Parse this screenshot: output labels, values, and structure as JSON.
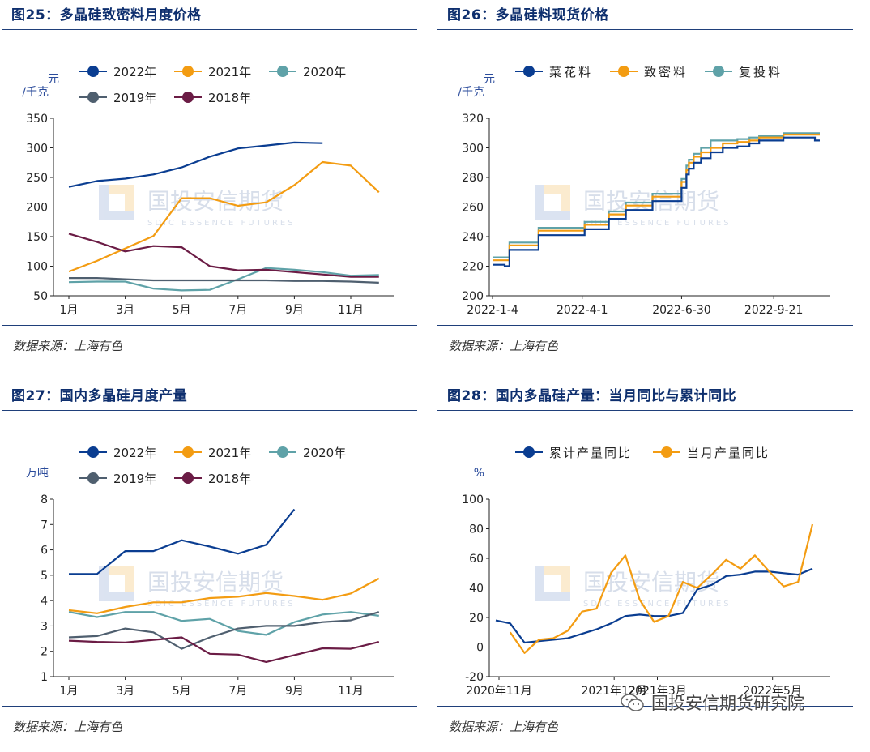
{
  "watermark": {
    "cn": "国投安信期货",
    "en": "SDIC ESSENCE FUTURES"
  },
  "footer_watermark": "国投安信期货研究院",
  "source": "数据来源：上海有色",
  "charts": [
    {
      "title": "图25：多晶硅致密料月度价格",
      "chart_data": {
        "type": "line",
        "unit": "元\n/千克",
        "unit_lines": [
          "元",
          "/千克"
        ],
        "x": [
          1,
          2,
          3,
          4,
          5,
          6,
          7,
          8,
          9,
          10,
          11,
          12
        ],
        "xticks": [
          "1月",
          "3月",
          "5月",
          "7月",
          "9月",
          "11月"
        ],
        "ylim": [
          50,
          350
        ],
        "yticks": [
          "50",
          "100",
          "150",
          "200",
          "250",
          "300",
          "350"
        ],
        "series": [
          {
            "name": "2022年",
            "color": "#0a3d91",
            "values": [
              234,
              244,
              248,
              255,
              267,
              285,
              299,
              304,
              309,
              308,
              null,
              null
            ]
          },
          {
            "name": "2021年",
            "color": "#f39c12",
            "values": [
              91,
              109,
              130,
              151,
              215,
              215,
              202,
              208,
              237,
              276,
              270,
              225
            ]
          },
          {
            "name": "2020年",
            "color": "#5fa2a8",
            "values": [
              73,
              74,
              74,
              62,
              59,
              60,
              78,
              97,
              94,
              90,
              84,
              85
            ]
          },
          {
            "name": "2019年",
            "color": "#4f5f6f",
            "values": [
              80,
              80,
              78,
              76,
              76,
              76,
              76,
              76,
              75,
              75,
              74,
              72
            ]
          },
          {
            "name": "2018年",
            "color": "#6b1c45",
            "values": [
              155,
              141,
              125,
              134,
              132,
              100,
              93,
              94,
              90,
              86,
              82,
              82
            ]
          }
        ]
      }
    },
    {
      "title": "图26：多晶硅料现货价格",
      "chart_data": {
        "type": "line",
        "unit": "元\n/千克",
        "unit_lines": [
          "元",
          "/千克"
        ],
        "ylim": [
          200,
          320
        ],
        "yticks": [
          "200",
          "220",
          "240",
          "260",
          "280",
          "300",
          "320"
        ],
        "xticks": [
          "2022-1-4",
          "2022-4-1",
          "2022-6-30",
          "2022-9-21"
        ],
        "xtick_index": [
          0,
          37,
          78,
          116
        ],
        "series": [
          {
            "name": "菜花料",
            "color": "#0a3d91",
            "steps": [
              [
                0,
                221
              ],
              [
                5,
                220
              ],
              [
                7,
                231
              ],
              [
                17,
                231
              ],
              [
                19,
                241
              ],
              [
                37,
                241
              ],
              [
                38,
                245
              ],
              [
                47,
                245
              ],
              [
                48,
                252
              ],
              [
                53,
                252
              ],
              [
                55,
                258
              ],
              [
                64,
                258
              ],
              [
                66,
                264
              ],
              [
                74,
                264
              ],
              [
                78,
                273
              ],
              [
                80,
                282
              ],
              [
                81,
                286
              ],
              [
                83,
                290
              ],
              [
                86,
                293
              ],
              [
                90,
                297
              ],
              [
                95,
                300
              ],
              [
                101,
                301
              ],
              [
                106,
                303
              ],
              [
                110,
                305
              ],
              [
                118,
                305
              ],
              [
                120,
                307
              ],
              [
                132,
                307
              ],
              [
                133,
                305
              ],
              [
                135,
                305
              ]
            ]
          },
          {
            "name": "致密料",
            "color": "#f39c12",
            "steps": [
              [
                0,
                224
              ],
              [
                5,
                224
              ],
              [
                7,
                234
              ],
              [
                17,
                234
              ],
              [
                19,
                244
              ],
              [
                37,
                244
              ],
              [
                38,
                248
              ],
              [
                47,
                248
              ],
              [
                48,
                255
              ],
              [
                53,
                255
              ],
              [
                55,
                261
              ],
              [
                64,
                261
              ],
              [
                66,
                267
              ],
              [
                74,
                267
              ],
              [
                78,
                277
              ],
              [
                80,
                285
              ],
              [
                81,
                290
              ],
              [
                83,
                294
              ],
              [
                86,
                297
              ],
              [
                90,
                300
              ],
              [
                95,
                303
              ],
              [
                101,
                304
              ],
              [
                106,
                305
              ],
              [
                110,
                307
              ],
              [
                118,
                307
              ],
              [
                120,
                309
              ],
              [
                132,
                309
              ],
              [
                135,
                309
              ]
            ]
          },
          {
            "name": "复投料",
            "color": "#5fa2a8",
            "steps": [
              [
                0,
                226
              ],
              [
                5,
                226
              ],
              [
                7,
                236
              ],
              [
                17,
                236
              ],
              [
                19,
                246
              ],
              [
                37,
                246
              ],
              [
                38,
                250
              ],
              [
                47,
                250
              ],
              [
                48,
                257
              ],
              [
                53,
                257
              ],
              [
                55,
                263
              ],
              [
                64,
                263
              ],
              [
                66,
                269
              ],
              [
                74,
                269
              ],
              [
                78,
                279
              ],
              [
                80,
                288
              ],
              [
                81,
                292
              ],
              [
                83,
                296
              ],
              [
                86,
                300
              ],
              [
                90,
                305
              ],
              [
                95,
                305
              ],
              [
                101,
                306
              ],
              [
                106,
                307
              ],
              [
                110,
                308
              ],
              [
                118,
                308
              ],
              [
                120,
                310
              ],
              [
                132,
                310
              ],
              [
                135,
                310
              ]
            ]
          }
        ]
      }
    },
    {
      "title": "图27：国内多晶硅月度产量",
      "chart_data": {
        "type": "line",
        "unit": "万吨",
        "unit_lines": [
          "万吨"
        ],
        "x": [
          1,
          2,
          3,
          4,
          5,
          6,
          7,
          8,
          9,
          10,
          11,
          12
        ],
        "xticks": [
          "1月",
          "3月",
          "5月",
          "7月",
          "9月",
          "11月"
        ],
        "ylim": [
          1,
          8
        ],
        "yticks": [
          "1",
          "2",
          "3",
          "4",
          "5",
          "6",
          "7",
          "8"
        ],
        "series": [
          {
            "name": "2022年",
            "color": "#0a3d91",
            "values": [
              5.05,
              5.05,
              5.95,
              5.95,
              6.38,
              6.13,
              5.85,
              6.2,
              7.6,
              null,
              null,
              null
            ]
          },
          {
            "name": "2021年",
            "color": "#f39c12",
            "values": [
              3.62,
              3.5,
              3.75,
              3.93,
              3.93,
              4.1,
              4.15,
              4.3,
              4.18,
              4.03,
              4.28,
              4.87
            ]
          },
          {
            "name": "2020年",
            "color": "#5fa2a8",
            "values": [
              3.55,
              3.35,
              3.55,
              3.55,
              3.2,
              3.28,
              2.8,
              2.65,
              3.15,
              3.45,
              3.55,
              3.4
            ]
          },
          {
            "name": "2019年",
            "color": "#4f5f6f",
            "values": [
              2.55,
              2.6,
              2.9,
              2.75,
              2.1,
              2.55,
              2.9,
              3.0,
              3.0,
              3.15,
              3.22,
              3.55
            ]
          },
          {
            "name": "2018年",
            "color": "#6b1c45",
            "values": [
              2.42,
              2.37,
              2.35,
              2.45,
              2.55,
              1.9,
              1.87,
              1.58,
              1.85,
              2.12,
              2.1,
              2.37
            ]
          }
        ]
      }
    },
    {
      "title": "图28：国内多晶硅产量：当月同比与累计同比",
      "chart_data": {
        "type": "line",
        "unit": "%",
        "unit_lines": [
          "%"
        ],
        "ylim": [
          -20,
          100
        ],
        "yticks": [
          "-20",
          "0",
          "20",
          "40",
          "60",
          "80",
          "100"
        ],
        "xticks": [
          "2020年11月",
          "2021年12月",
          "2021年3月",
          "2022年5月"
        ],
        "xtick_index": [
          1,
          13,
          16,
          30
        ],
        "n_points": 32,
        "series": [
          {
            "name": "累计产量同比",
            "color": "#0a3d91",
            "x_start": 0,
            "values": [
              18,
              16,
              3,
              4,
              5,
              6,
              9,
              12,
              16,
              21,
              22,
              21,
              21,
              23,
              39,
              42,
              48,
              49,
              51,
              51,
              50,
              49,
              53
            ]
          },
          {
            "name": "当月产量同比",
            "color": "#f39c12",
            "x_start": 1,
            "values": [
              10,
              -4,
              5,
              6,
              11,
              24,
              26,
              50,
              62,
              32,
              17,
              21,
              44,
              40,
              49,
              59,
              53,
              62,
              51,
              41,
              44,
              83
            ]
          }
        ]
      }
    }
  ]
}
